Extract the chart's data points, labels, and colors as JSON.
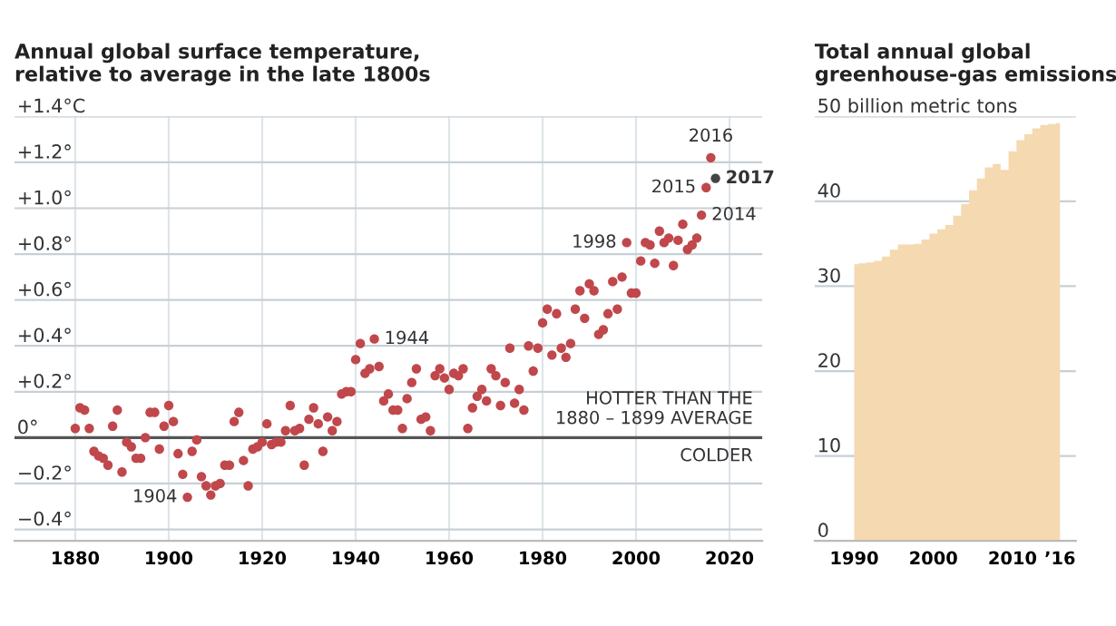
{
  "chart_data": [
    {
      "type": "scatter",
      "title": "Annual global surface temperature,\nrelative to average in the late 1800s",
      "x": [
        1880,
        1881,
        1882,
        1883,
        1884,
        1885,
        1886,
        1887,
        1888,
        1889,
        1890,
        1891,
        1892,
        1893,
        1894,
        1895,
        1896,
        1897,
        1898,
        1899,
        1900,
        1901,
        1902,
        1903,
        1904,
        1905,
        1906,
        1907,
        1908,
        1909,
        1910,
        1911,
        1912,
        1913,
        1914,
        1915,
        1916,
        1917,
        1918,
        1919,
        1920,
        1921,
        1922,
        1923,
        1924,
        1925,
        1926,
        1927,
        1928,
        1929,
        1930,
        1931,
        1932,
        1933,
        1934,
        1935,
        1936,
        1937,
        1938,
        1939,
        1940,
        1941,
        1942,
        1943,
        1944,
        1945,
        1946,
        1947,
        1948,
        1949,
        1950,
        1951,
        1952,
        1953,
        1954,
        1955,
        1956,
        1957,
        1958,
        1959,
        1960,
        1961,
        1962,
        1963,
        1964,
        1965,
        1966,
        1967,
        1968,
        1969,
        1970,
        1971,
        1972,
        1973,
        1974,
        1975,
        1976,
        1977,
        1978,
        1979,
        1980,
        1981,
        1982,
        1983,
        1984,
        1985,
        1986,
        1987,
        1988,
        1989,
        1990,
        1991,
        1992,
        1993,
        1994,
        1995,
        1996,
        1997,
        1998,
        1999,
        2000,
        2001,
        2002,
        2003,
        2004,
        2005,
        2006,
        2007,
        2008,
        2009,
        2010,
        2011,
        2012,
        2013,
        2014,
        2015,
        2016,
        2017
      ],
      "values": [
        0.04,
        0.13,
        0.12,
        0.04,
        -0.06,
        -0.08,
        -0.09,
        -0.12,
        0.05,
        0.12,
        -0.15,
        -0.02,
        -0.04,
        -0.09,
        -0.09,
        0.0,
        0.11,
        0.11,
        -0.05,
        0.05,
        0.14,
        0.07,
        -0.07,
        -0.16,
        -0.26,
        -0.06,
        -0.01,
        -0.17,
        -0.21,
        -0.25,
        -0.21,
        -0.2,
        -0.12,
        -0.12,
        0.07,
        0.11,
        -0.1,
        -0.21,
        -0.05,
        -0.04,
        -0.02,
        0.06,
        -0.03,
        -0.02,
        -0.02,
        0.03,
        0.14,
        0.03,
        0.04,
        -0.12,
        0.08,
        0.13,
        0.06,
        -0.06,
        0.09,
        0.03,
        0.07,
        0.19,
        0.2,
        0.2,
        0.34,
        0.41,
        0.28,
        0.3,
        0.43,
        0.31,
        0.16,
        0.19,
        0.12,
        0.12,
        0.04,
        0.17,
        0.24,
        0.3,
        0.08,
        0.09,
        0.03,
        0.27,
        0.3,
        0.26,
        0.21,
        0.28,
        0.27,
        0.3,
        0.04,
        0.13,
        0.18,
        0.21,
        0.16,
        0.3,
        0.27,
        0.14,
        0.24,
        0.39,
        0.15,
        0.21,
        0.12,
        0.4,
        0.29,
        0.39,
        0.5,
        0.56,
        0.36,
        0.54,
        0.39,
        0.35,
        0.41,
        0.56,
        0.64,
        0.52,
        0.67,
        0.64,
        0.45,
        0.47,
        0.54,
        0.68,
        0.56,
        0.7,
        0.85,
        0.63,
        0.63,
        0.77,
        0.85,
        0.84,
        0.76,
        0.9,
        0.85,
        0.87,
        0.75,
        0.86,
        0.93,
        0.82,
        0.84,
        0.87,
        0.97,
        1.09,
        1.22,
        1.13
      ],
      "colors": [
        "#c0474b",
        "#c0474b",
        "#c0474b",
        "#c0474b",
        "#c0474b",
        "#c0474b",
        "#c0474b",
        "#c0474b",
        "#c0474b",
        "#c0474b",
        "#c0474b",
        "#c0474b",
        "#c0474b",
        "#c0474b",
        "#c0474b",
        "#c0474b",
        "#c0474b",
        "#c0474b",
        "#c0474b",
        "#c0474b",
        "#c0474b",
        "#c0474b",
        "#c0474b",
        "#c0474b",
        "#c0474b",
        "#c0474b",
        "#c0474b",
        "#c0474b",
        "#c0474b",
        "#c0474b",
        "#c0474b",
        "#c0474b",
        "#c0474b",
        "#c0474b",
        "#c0474b",
        "#c0474b",
        "#c0474b",
        "#c0474b",
        "#c0474b",
        "#c0474b",
        "#c0474b",
        "#c0474b",
        "#c0474b",
        "#c0474b",
        "#c0474b",
        "#c0474b",
        "#c0474b",
        "#c0474b",
        "#c0474b",
        "#c0474b",
        "#c0474b",
        "#c0474b",
        "#c0474b",
        "#c0474b",
        "#c0474b",
        "#c0474b",
        "#c0474b",
        "#c0474b",
        "#c0474b",
        "#c0474b",
        "#c0474b",
        "#c0474b",
        "#c0474b",
        "#c0474b",
        "#c0474b",
        "#c0474b",
        "#c0474b",
        "#c0474b",
        "#c0474b",
        "#c0474b",
        "#c0474b",
        "#c0474b",
        "#c0474b",
        "#c0474b",
        "#c0474b",
        "#c0474b",
        "#c0474b",
        "#c0474b",
        "#c0474b",
        "#c0474b",
        "#c0474b",
        "#c0474b",
        "#c0474b",
        "#c0474b",
        "#c0474b",
        "#c0474b",
        "#c0474b",
        "#c0474b",
        "#c0474b",
        "#c0474b",
        "#c0474b",
        "#c0474b",
        "#c0474b",
        "#c0474b",
        "#c0474b",
        "#c0474b",
        "#c0474b",
        "#c0474b",
        "#c0474b",
        "#c0474b",
        "#c0474b",
        "#c0474b",
        "#c0474b",
        "#c0474b",
        "#c0474b",
        "#c0474b",
        "#c0474b",
        "#c0474b",
        "#c0474b",
        "#c0474b",
        "#c0474b",
        "#c0474b",
        "#c0474b",
        "#c0474b",
        "#c0474b",
        "#c0474b",
        "#c0474b",
        "#c0474b",
        "#c0474b",
        "#c0474b",
        "#c0474b",
        "#c0474b",
        "#c0474b",
        "#c0474b",
        "#c0474b",
        "#c0474b",
        "#c0474b",
        "#c0474b",
        "#c0474b",
        "#c0474b",
        "#c0474b",
        "#c0474b",
        "#c0474b",
        "#c0474b",
        "#c0474b",
        "#c0474b",
        "#c0474b",
        "#444444"
      ],
      "marker": "circle",
      "xlim": [
        1867,
        2027
      ],
      "ylim": [
        -0.45,
        1.4
      ],
      "xticks": [
        1880,
        1900,
        1920,
        1940,
        1960,
        1980,
        2000,
        2020
      ],
      "yticks": [
        {
          "value": 1.4,
          "label": "+1.4°C"
        },
        {
          "value": 1.2,
          "label": "+1.2°"
        },
        {
          "value": 1.0,
          "label": "+1.0°"
        },
        {
          "value": 0.8,
          "label": "+0.8°"
        },
        {
          "value": 0.6,
          "label": "+0.6°"
        },
        {
          "value": 0.4,
          "label": "+0.4°"
        },
        {
          "value": 0.2,
          "label": "+0.2°"
        },
        {
          "value": 0,
          "label": "0°"
        },
        {
          "value": -0.2,
          "label": "−0.2°"
        },
        {
          "value": -0.4,
          "label": "−0.4°"
        }
      ],
      "grid": true,
      "ref_lines": [
        {
          "axis": "y",
          "value": 0,
          "color": "#555555"
        }
      ],
      "annotations": [
        {
          "text": "1904",
          "x": 1904,
          "y": -0.26
        },
        {
          "text": "1944",
          "x": 1944,
          "y": 0.43
        },
        {
          "text": "1998",
          "x": 1998,
          "y": 0.85
        },
        {
          "text": "2014",
          "x": 2014,
          "y": 0.97
        },
        {
          "text": "2015",
          "x": 2015,
          "y": 1.09
        },
        {
          "text": "2016",
          "x": 2016,
          "y": 1.22
        },
        {
          "text": "2017",
          "x": 2017,
          "y": 1.13
        },
        {
          "text": "HOTTER THAN THE\n1880 – 1899 AVERAGE",
          "x": 2025,
          "y": 0
        },
        {
          "text": "COLDER",
          "x": 2025,
          "y": 0
        }
      ]
    },
    {
      "type": "area",
      "title": "Total annual global\ngreenhouse-gas emissions",
      "x": [
        1990,
        1991,
        1992,
        1993,
        1994,
        1995,
        1996,
        1997,
        1998,
        1999,
        2000,
        2001,
        2002,
        2003,
        2004,
        2005,
        2006,
        2007,
        2008,
        2009,
        2010,
        2011,
        2012,
        2013,
        2014,
        2015,
        2016
      ],
      "values": [
        32.6,
        32.7,
        32.8,
        33.0,
        33.5,
        34.3,
        34.9,
        34.9,
        35.0,
        35.5,
        36.2,
        36.7,
        37.2,
        38.3,
        39.7,
        41.3,
        42.7,
        44.0,
        44.4,
        43.7,
        45.9,
        47.2,
        47.9,
        48.6,
        49.0,
        49.1,
        49.2
      ],
      "color": "#f5d9b0",
      "xlim": [
        1985,
        2018
      ],
      "ylim": [
        0,
        50
      ],
      "xticks": [
        1990,
        2000,
        2010,
        {
          "value": 2016,
          "label": "’16"
        }
      ],
      "yticks": [
        0,
        10,
        20,
        30,
        40,
        {
          "value": 50,
          "label": "50 billion metric tons"
        }
      ],
      "grid": "y"
    }
  ]
}
